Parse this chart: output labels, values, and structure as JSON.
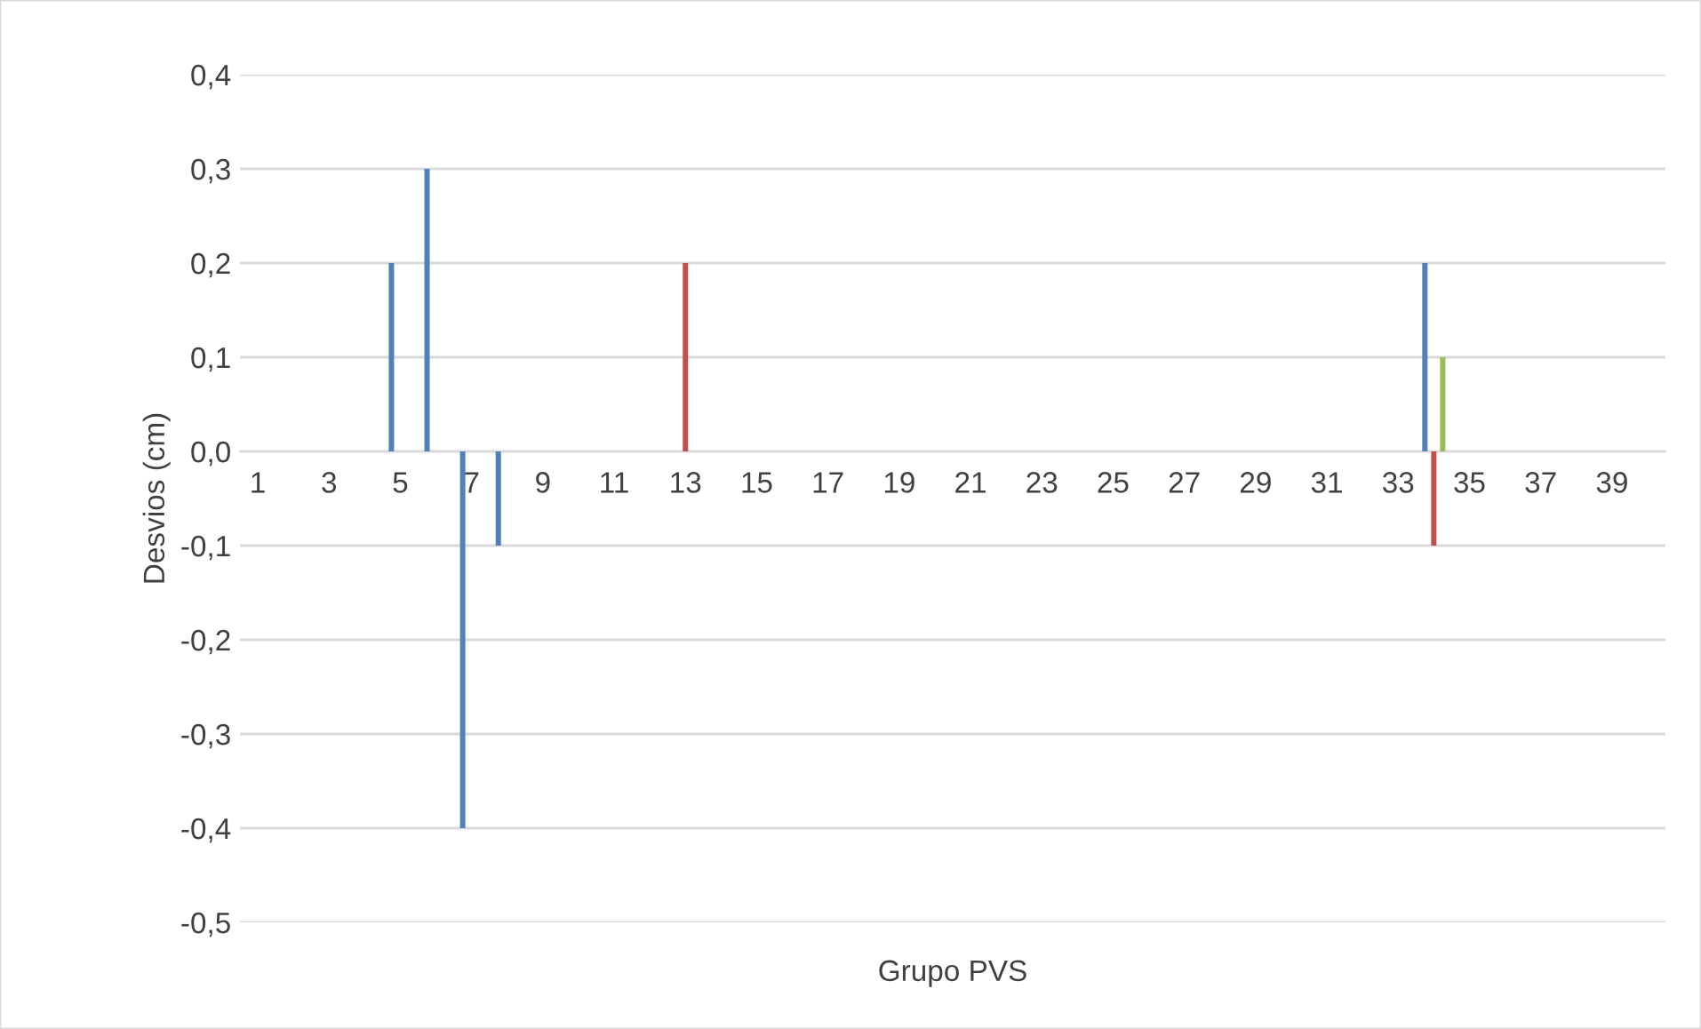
{
  "chart_data": {
    "type": "bar",
    "xlabel": "Grupo PVS",
    "ylabel": "Desvios (cm)",
    "categories": [
      "1",
      null,
      "3",
      null,
      "5",
      null,
      "7",
      null,
      "9",
      null,
      "11",
      null,
      "13",
      null,
      "15",
      null,
      "17",
      null,
      "19",
      null,
      "21",
      null,
      "23",
      null,
      "25",
      null,
      "27",
      null,
      "29",
      null,
      "31",
      null,
      "33",
      null,
      "35",
      null,
      "37",
      null,
      "39",
      null
    ],
    "series": [
      {
        "color": "#4f81bd",
        "values": [
          null,
          null,
          null,
          null,
          0.2,
          0.3,
          -0.4,
          -0.1,
          null,
          null,
          null,
          null,
          null,
          null,
          null,
          null,
          null,
          null,
          null,
          null,
          null,
          null,
          null,
          null,
          null,
          null,
          null,
          null,
          null,
          null,
          null,
          null,
          null,
          0.2,
          null,
          null,
          null,
          null,
          null,
          null
        ]
      },
      {
        "color": "#c0504d",
        "values": [
          null,
          null,
          null,
          null,
          null,
          null,
          null,
          null,
          null,
          null,
          null,
          null,
          0.2,
          null,
          null,
          null,
          null,
          null,
          null,
          null,
          null,
          null,
          null,
          null,
          null,
          null,
          null,
          null,
          null,
          null,
          null,
          null,
          null,
          -0.1,
          null,
          null,
          null,
          null,
          null,
          null
        ]
      },
      {
        "color": "#9bbb59",
        "values": [
          null,
          null,
          null,
          null,
          null,
          null,
          null,
          null,
          null,
          null,
          null,
          null,
          null,
          null,
          null,
          null,
          null,
          null,
          null,
          null,
          null,
          null,
          null,
          null,
          null,
          null,
          null,
          null,
          null,
          null,
          null,
          null,
          null,
          0.1,
          null,
          null,
          null,
          null,
          null,
          null
        ]
      }
    ],
    "ylim": [
      -0.5,
      0.4
    ],
    "yticks": [
      {
        "value": -0.5,
        "label": "-0,5"
      },
      {
        "value": -0.4,
        "label": "-0,4"
      },
      {
        "value": -0.3,
        "label": "-0,3"
      },
      {
        "value": -0.2,
        "label": "-0,2"
      },
      {
        "value": -0.1,
        "label": "-0,1"
      },
      {
        "value": 0,
        "label": "0,0"
      },
      {
        "value": 0.1,
        "label": "0,1"
      },
      {
        "value": 0.2,
        "label": "0,2"
      },
      {
        "value": 0.3,
        "label": "0,3"
      },
      {
        "value": 0.4,
        "label": "0,4"
      }
    ],
    "grid": "y",
    "legend": false
  }
}
